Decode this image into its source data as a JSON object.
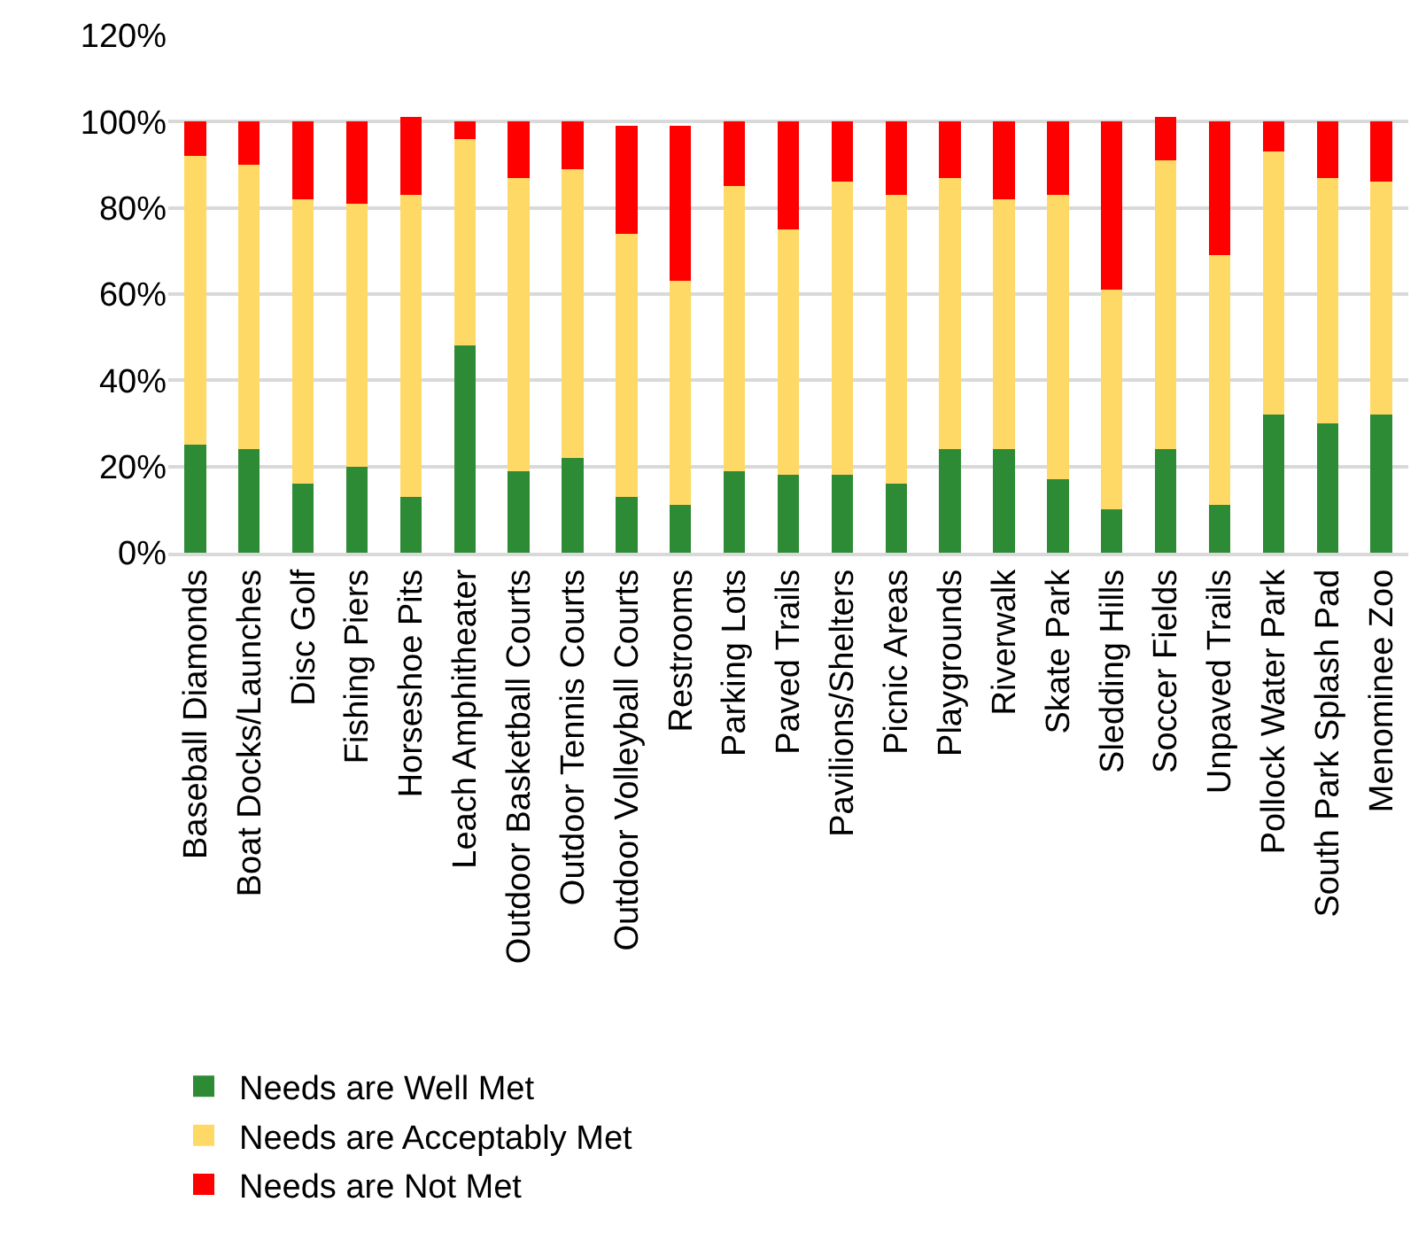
{
  "chart_data": {
    "type": "bar",
    "stacked": true,
    "categories": [
      "Baseball Diamonds",
      "Boat Docks/Launches",
      "Disc Golf",
      "Fishing Piers",
      "Horseshoe Pits",
      "Leach Amphitheater",
      "Outdoor Basketball Courts",
      "Outdoor Tennis Courts",
      "Outdoor Volleyball Courts",
      "Restrooms",
      "Parking Lots",
      "Paved Trails",
      "Pavilions/Shelters",
      "Picnic Areas",
      "Playgrounds",
      "Riverwalk",
      "Skate Park",
      "Sledding Hills",
      "Soccer Fields",
      "Unpaved Trails",
      "Pollock Water Park",
      "South Park Splash Pad",
      "Menominee Zoo"
    ],
    "series": [
      {
        "name": "Needs are Well Met",
        "color": "#2e8b35",
        "values": [
          25,
          24,
          16,
          20,
          13,
          48,
          19,
          22,
          13,
          11,
          19,
          18,
          18,
          16,
          24,
          24,
          17,
          10,
          24,
          11,
          32,
          30,
          32
        ]
      },
      {
        "name": "Needs are Acceptably Met",
        "color": "#ffd966",
        "values": [
          67,
          66,
          66,
          61,
          70,
          48,
          68,
          67,
          61,
          52,
          66,
          57,
          68,
          67,
          63,
          58,
          66,
          51,
          67,
          58,
          61,
          57,
          54
        ]
      },
      {
        "name": "Needs are Not Met",
        "color": "#ff0000",
        "values": [
          8,
          10,
          18,
          19,
          18,
          4,
          13,
          11,
          25,
          36,
          15,
          25,
          14,
          17,
          13,
          18,
          17,
          39,
          10,
          31,
          7,
          13,
          14
        ]
      }
    ],
    "ylim": [
      0,
      120
    ],
    "yticks": [
      {
        "value": 0,
        "label": "0%"
      },
      {
        "value": 20,
        "label": "20%"
      },
      {
        "value": 40,
        "label": "40%"
      },
      {
        "value": 60,
        "label": "60%"
      },
      {
        "value": 80,
        "label": "80%"
      },
      {
        "value": 100,
        "label": "100%"
      },
      {
        "value": 120,
        "label": "120%"
      }
    ],
    "grid": "y",
    "legend": "bottom"
  }
}
